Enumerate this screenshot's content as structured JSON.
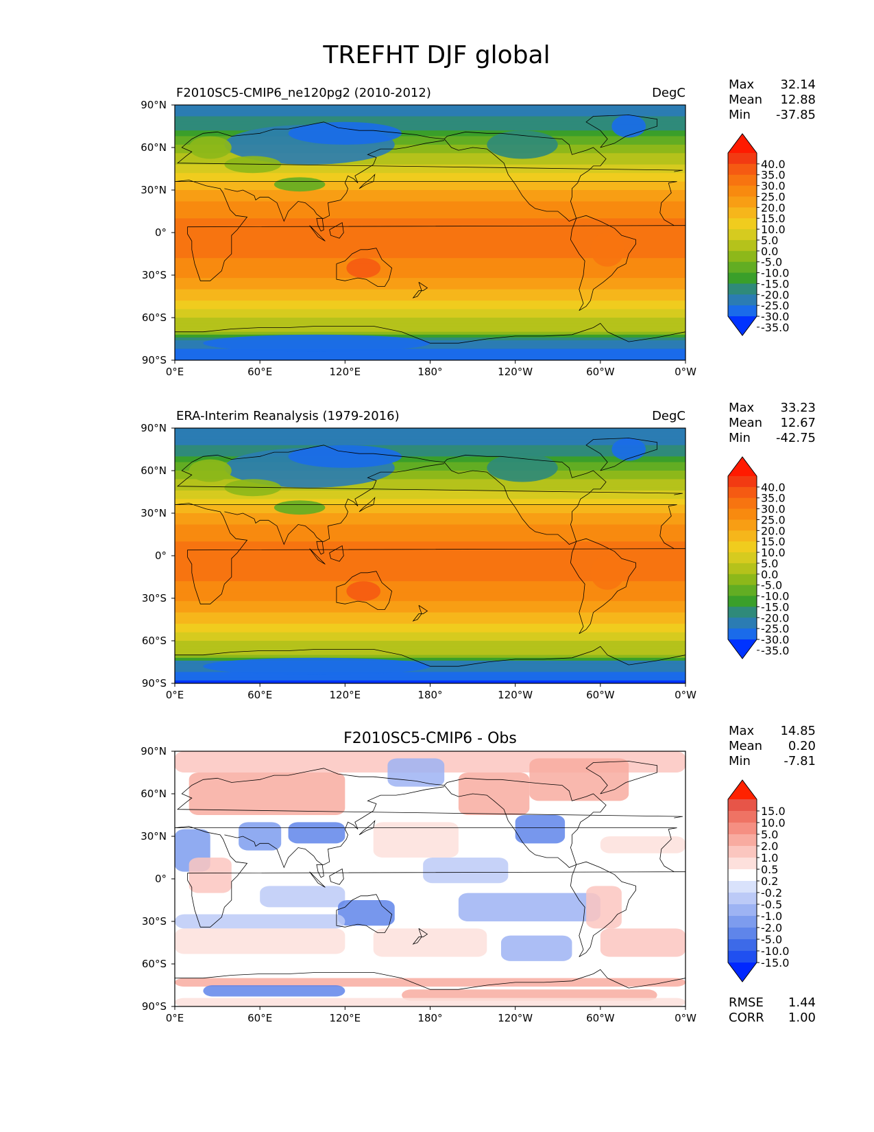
{
  "figure_title": "TREFHT DJF global",
  "colors": {
    "abs_levels": [
      "#0033ff",
      "#1a6bea",
      "#2b7cb3",
      "#2f8a7a",
      "#3a9f2a",
      "#62ad23",
      "#8db81a",
      "#b5c21b",
      "#d6cb1f",
      "#f0cc1e",
      "#f6b61b",
      "#f89e14",
      "#f88a0f",
      "#f77410",
      "#f55a12",
      "#f23a12",
      "#ff1a00"
    ],
    "diff_levels": [
      "#0027ff",
      "#2050f0",
      "#3d6ae8",
      "#5f85ea",
      "#7d9cee",
      "#9db3f3",
      "#bccaf7",
      "#d9e2fb",
      "#ffffff",
      "#fde0dc",
      "#fbc6bf",
      "#f8aba0",
      "#f58f82",
      "#ef7364",
      "#e75548",
      "#ff2200"
    ],
    "ocean_border": "#000000"
  },
  "chart_data": [
    {
      "type": "heatmap",
      "title_left": "F2010SC5-CMIP6_ne120pg2 (2010-2012)",
      "title_right": "DegC",
      "title_center": "",
      "xticks": [
        "0°E",
        "60°E",
        "120°E",
        "180°",
        "120°W",
        "60°W",
        "0°W"
      ],
      "yticks": [
        "90°N",
        "60°N",
        "30°N",
        "0°",
        "30°S",
        "60°S",
        "90°S"
      ],
      "xlim": [
        0,
        360
      ],
      "ylim": [
        -90,
        90
      ],
      "stats": [
        [
          "Max",
          "32.14"
        ],
        [
          "Mean",
          "12.88"
        ],
        [
          "Min",
          "-37.85"
        ]
      ],
      "colorbar_labels": [
        "40.0",
        "35.0",
        "30.0",
        "25.0",
        "20.0",
        "15.0",
        "10.0",
        "5.0",
        "0.0",
        "-5.0",
        "-10.0",
        "-15.0",
        "-20.0",
        "-25.0",
        "-30.0",
        "-35.0"
      ],
      "colorbar_min": -35,
      "colorbar_max": 40,
      "latitudinal_profile": {
        "lat": [
          90,
          75,
          60,
          45,
          30,
          15,
          0,
          -15,
          -30,
          -45,
          -60,
          -70,
          -75,
          -90
        ],
        "value": [
          -28,
          -22,
          -8,
          2,
          15,
          24,
          27,
          26,
          21,
          12,
          0,
          -5,
          -25,
          -35
        ]
      }
    },
    {
      "type": "heatmap",
      "title_left": "ERA-Interim Reanalysis (1979-2016)",
      "title_right": "DegC",
      "title_center": "",
      "xticks": [
        "0°E",
        "60°E",
        "120°E",
        "180°",
        "120°W",
        "60°W",
        "0°W"
      ],
      "yticks": [
        "90°N",
        "60°N",
        "30°N",
        "0°",
        "30°S",
        "60°S",
        "90°S"
      ],
      "xlim": [
        0,
        360
      ],
      "ylim": [
        -90,
        90
      ],
      "stats": [
        [
          "Max",
          "33.23"
        ],
        [
          "Mean",
          "12.67"
        ],
        [
          "Min",
          "-42.75"
        ]
      ],
      "colorbar_labels": [
        "40.0",
        "35.0",
        "30.0",
        "25.0",
        "20.0",
        "15.0",
        "10.0",
        "5.0",
        "0.0",
        "-5.0",
        "-10.0",
        "-15.0",
        "-20.0",
        "-25.0",
        "-30.0",
        "-35.0"
      ],
      "colorbar_min": -35,
      "colorbar_max": 40,
      "latitudinal_profile": {
        "lat": [
          90,
          75,
          60,
          45,
          30,
          15,
          0,
          -15,
          -30,
          -45,
          -60,
          -70,
          -75,
          -90
        ],
        "value": [
          -30,
          -24,
          -10,
          1,
          15,
          24,
          27,
          26,
          21,
          12,
          0,
          -5,
          -26,
          -36
        ]
      }
    },
    {
      "type": "heatmap",
      "title_left": "",
      "title_right": "",
      "title_center": "F2010SC5-CMIP6 - Obs",
      "xticks": [
        "0°E",
        "60°E",
        "120°E",
        "180°",
        "120°W",
        "60°W",
        "0°W"
      ],
      "yticks": [
        "90°N",
        "60°N",
        "30°N",
        "0°",
        "30°S",
        "60°S",
        "90°S"
      ],
      "xlim": [
        0,
        360
      ],
      "ylim": [
        -90,
        90
      ],
      "stats": [
        [
          "Max",
          "14.85"
        ],
        [
          "Mean",
          "0.20"
        ],
        [
          "Min",
          "-7.81"
        ]
      ],
      "extra_stats": [
        [
          "RMSE",
          "1.44"
        ],
        [
          "CORR",
          "1.00"
        ]
      ],
      "colorbar_labels": [
        "15.0",
        "10.0",
        "5.0",
        "2.0",
        "1.0",
        "0.5",
        "0.2",
        "-0.2",
        "-0.5",
        "-1.0",
        "-2.0",
        "-5.0",
        "-10.0",
        "-15.0"
      ],
      "colorbar_levels": [
        -15,
        -10,
        -5,
        -2,
        -1,
        -0.5,
        -0.2,
        0.2,
        0.5,
        1,
        2,
        5,
        10,
        15
      ]
    }
  ]
}
